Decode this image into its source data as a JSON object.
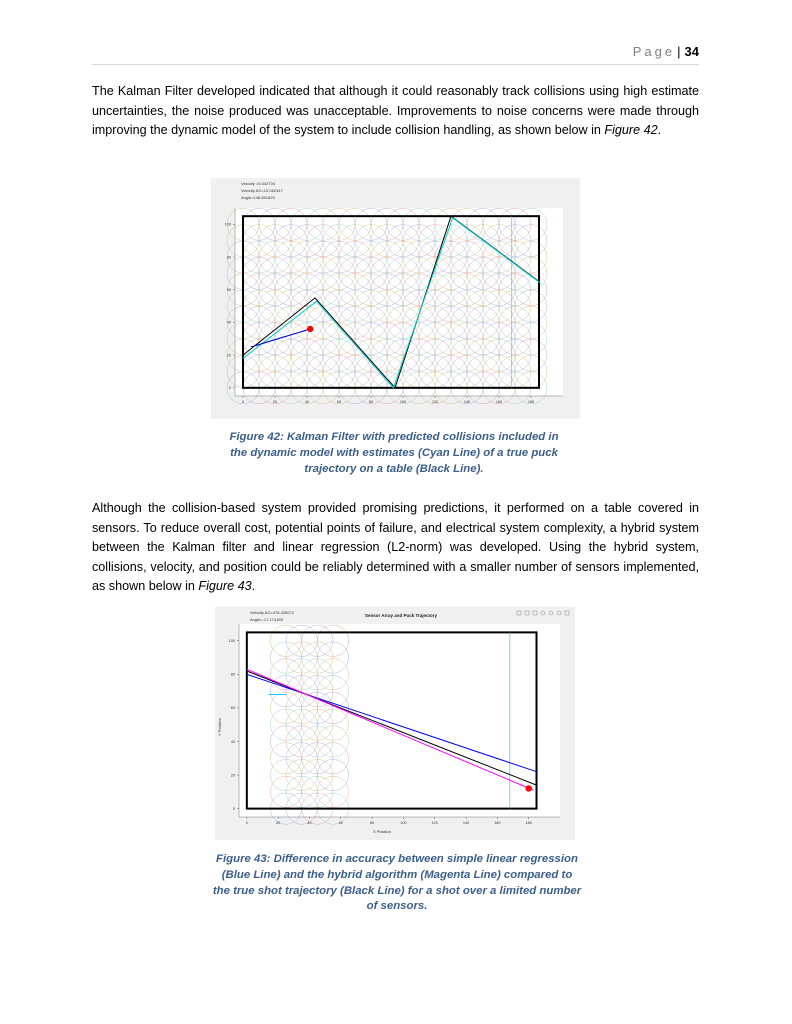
{
  "header": {
    "page_word": "Page",
    "page_number": "34"
  },
  "paragraph1": {
    "text": "The Kalman Filter developed indicated that although it could reasonably track collisions using high estimate uncertainties, the noise produced was unacceptable. Improvements to noise concerns were made through improving the dynamic model of the system to include collision handling, as shown below in ",
    "figref": "Figure 42",
    "end": "."
  },
  "figure42": {
    "annotations": [
      "Velocity =5.042704",
      "Velocity AG=10.082347",
      "Angle=148.891625"
    ],
    "caption": "Figure 42: Kalman Filter with predicted collisions included in the dynamic model with estimates (Cyan Line) of a true puck trajectory on a table (Black Line).",
    "chart_data": {
      "type": "line",
      "xlim": [
        -5,
        200
      ],
      "ylim": [
        -5,
        110
      ],
      "xticks": [
        0,
        20,
        40,
        60,
        80,
        100,
        120,
        140,
        160,
        180
      ],
      "yticks": [
        0,
        20,
        40,
        60,
        80,
        100
      ],
      "table_rect": {
        "x": [
          0,
          185
        ],
        "y": [
          0,
          105
        ]
      },
      "series": [
        {
          "color": "#000000",
          "points": [
            [
              0,
              20
            ],
            [
              45,
              55
            ],
            [
              95,
              0
            ],
            [
              130,
              105
            ],
            [
              185,
              65
            ]
          ]
        },
        {
          "color": "#00cccc",
          "points": [
            [
              0,
              18
            ],
            [
              46,
              53
            ],
            [
              94,
              0
            ],
            [
              131,
              104
            ],
            [
              186,
              64
            ]
          ]
        },
        {
          "color": "#0000cc",
          "points": [
            [
              5,
              25
            ],
            [
              42,
              36
            ]
          ]
        }
      ],
      "marker": {
        "x": 42,
        "y": 36,
        "color": "#ff0000"
      },
      "vline_x": 168
    }
  },
  "paragraph2": {
    "text": "Although the collision-based system provided promising predictions, it performed on a table covered in sensors. To reduce overall cost, potential points of failure, and electrical system complexity, a hybrid system between the Kalman filter and linear regression (L2-norm) was developed. Using the hybrid system, collisions, velocity, and position could be reliably determined with a smaller number of sensors implemented, as shown below in ",
    "figref": "Figure 43",
    "end": "."
  },
  "figure43": {
    "annotations": [
      "Velocity AG=476.439072",
      "Angle=-17.174189"
    ],
    "title": "Sensor Array and Puck Trajectory",
    "xlabel": "X Position",
    "ylabel": "Y Position",
    "caption": "Figure 43: Difference in accuracy between simple linear regression (Blue Line) and the hybrid algorithm (Magenta Line) compared to the true shot trajectory (Black Line) for a shot over a limited number of sensors.",
    "chart_data": {
      "type": "line",
      "xlim": [
        -5,
        200
      ],
      "ylim": [
        -5,
        110
      ],
      "xticks": [
        0,
        20,
        40,
        60,
        80,
        100,
        120,
        140,
        160,
        180
      ],
      "yticks": [
        0,
        20,
        40,
        60,
        80,
        100
      ],
      "table_rect": {
        "x": [
          0,
          185
        ],
        "y": [
          0,
          105
        ]
      },
      "series": [
        {
          "color": "#0000ff",
          "points": [
            [
              0,
              80
            ],
            [
              185,
              22
            ]
          ]
        },
        {
          "color": "#000000",
          "points": [
            [
              0,
              82
            ],
            [
              185,
              14
            ]
          ]
        },
        {
          "color": "#ff00ff",
          "points": [
            [
              0,
              83
            ],
            [
              183,
              11
            ]
          ]
        },
        {
          "color": "#00ccff",
          "points": [
            [
              14,
              68
            ],
            [
              25,
              68
            ]
          ]
        }
      ],
      "marker": {
        "x": 180,
        "y": 12,
        "color": "#ff0000"
      },
      "vline_x": 168
    }
  }
}
